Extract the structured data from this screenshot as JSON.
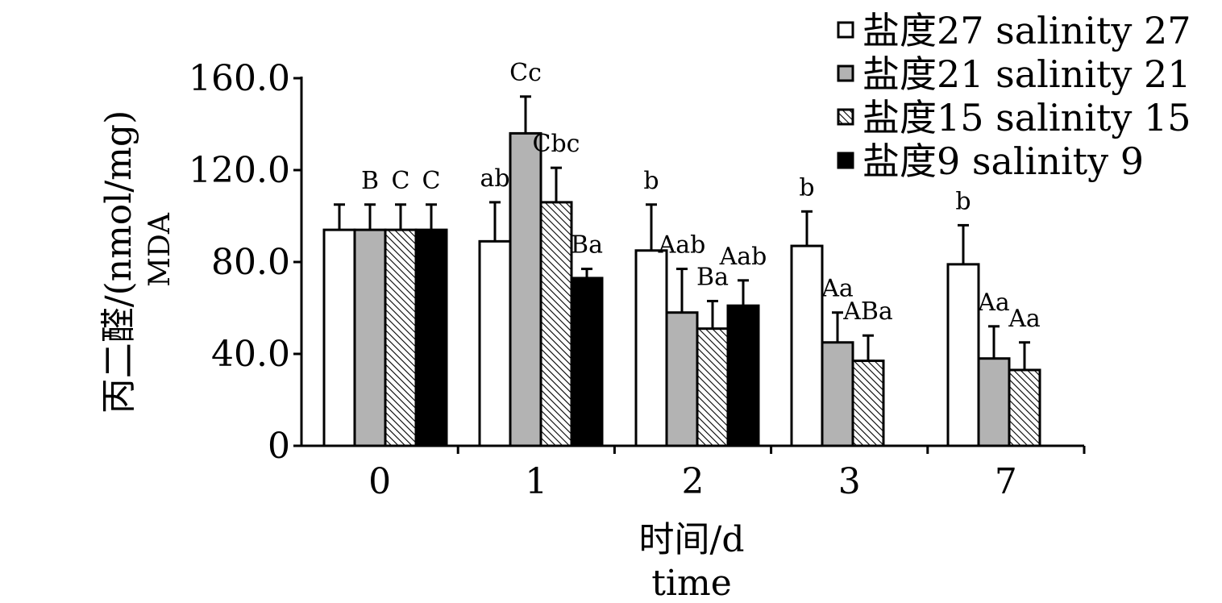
{
  "chart_data": {
    "type": "bar",
    "title": "",
    "ylabel_cn": "丙二醛/(nmol/mg)",
    "ylabel_en": "MDA",
    "xlabel_cn": "时间/d",
    "xlabel_en": "time",
    "ylim": [
      0,
      160
    ],
    "yticks": [
      0,
      40,
      80,
      120,
      160
    ],
    "ytick_labels": [
      "0",
      "40.0",
      "80.0",
      "120.0",
      "160.0"
    ],
    "categories": [
      "0",
      "1",
      "2",
      "3",
      "7"
    ],
    "legend_position": "top-right",
    "series": [
      {
        "name": "盐度27 salinity 27",
        "pattern": "white",
        "values": [
          94,
          89,
          85,
          87,
          79
        ],
        "errors": [
          11,
          17,
          20,
          15,
          17
        ],
        "labels": [
          "",
          "ab",
          "b",
          "b",
          "b"
        ]
      },
      {
        "name": "盐度21 salinity 21",
        "pattern": "gray",
        "values": [
          94,
          136,
          58,
          45,
          38
        ],
        "errors": [
          11,
          16,
          19,
          13,
          14
        ],
        "labels": [
          "B",
          "Cc",
          "Aab",
          "Aa",
          "Aa"
        ]
      },
      {
        "name": "盐度15 salinity 15",
        "pattern": "hatch",
        "values": [
          94,
          106,
          51,
          37,
          33
        ],
        "errors": [
          11,
          15,
          12,
          11,
          12
        ],
        "labels": [
          "C",
          "Cbc",
          "Ba",
          "ABa",
          "Aa"
        ]
      },
      {
        "name": "盐度9 salinity 9",
        "pattern": "black",
        "values": [
          94,
          73,
          61,
          null,
          null
        ],
        "errors": [
          11,
          4,
          11,
          null,
          null
        ],
        "labels": [
          "C",
          "Ba",
          "Aab",
          "",
          ""
        ]
      }
    ]
  }
}
